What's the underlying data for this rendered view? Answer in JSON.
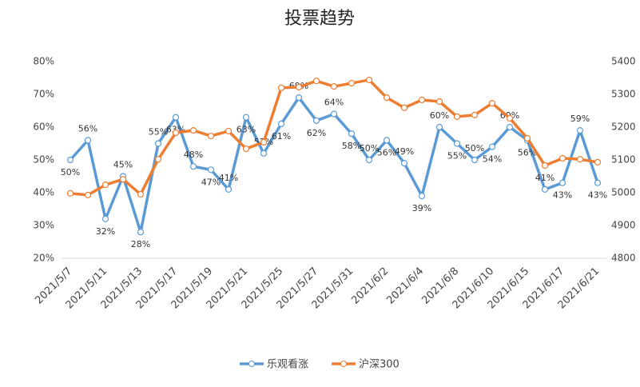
{
  "chart_data": {
    "type": "line",
    "title": "投票趋势",
    "categories": [
      "2021/5/7",
      null,
      "2021/5/11",
      null,
      "2021/5/13",
      null,
      "2021/5/17",
      null,
      "2021/5/19",
      null,
      "2021/5/21",
      null,
      "2021/5/25",
      null,
      "2021/5/27",
      null,
      "2021/5/31",
      null,
      "2021/6/2",
      null,
      "2021/6/4",
      null,
      "2021/6/8",
      null,
      "2021/6/10",
      null,
      "2021/6/15",
      null,
      "2021/6/17",
      null,
      "2021/6/21"
    ],
    "series": [
      {
        "name": "乐观看涨",
        "color": "#5b9bd5",
        "values": [
          50,
          56,
          32,
          45,
          28,
          55,
          63,
          48,
          47,
          41,
          63,
          52,
          61,
          69,
          62,
          64,
          58,
          50,
          56,
          49,
          39,
          60,
          55,
          50,
          54,
          60,
          56,
          41,
          43,
          59,
          43
        ],
        "value_labels": [
          "50%",
          "56%",
          "32%",
          "45%",
          "28%",
          "55%",
          "63%",
          "48%",
          "47%",
          "41%",
          "63%",
          "52%",
          "61%",
          "69%",
          "62%",
          "64%",
          "58%",
          "50%",
          "56%",
          "49%",
          "39%",
          "60%",
          "55%",
          "50%",
          "54%",
          "60%",
          "56%",
          "41%",
          "43%",
          "59%",
          "43%"
        ]
      },
      {
        "name": "沪深300",
        "color": "#ed7d31",
        "axis": "y2",
        "values": [
          4998,
          4993,
          5024,
          5041,
          4995,
          5102,
          5183,
          5190,
          5173,
          5188,
          5134,
          5154,
          5320,
          5322,
          5341,
          5324,
          5334,
          5344,
          5290,
          5259,
          5283,
          5278,
          5232,
          5237,
          5273,
          5227,
          5166,
          5083,
          5105,
          5102,
          5093
        ]
      }
    ],
    "ylim": [
      20,
      80
    ],
    "yticks": [
      {
        "value": 20,
        "label": "20%"
      },
      {
        "value": 30,
        "label": "30%"
      },
      {
        "value": 40,
        "label": "40%"
      },
      {
        "value": 50,
        "label": "50%"
      },
      {
        "value": 60,
        "label": "60%"
      },
      {
        "value": 70,
        "label": "70%"
      },
      {
        "value": 80,
        "label": "80%"
      }
    ],
    "y2lim": [
      4800,
      5400
    ],
    "y2ticks": [
      4800,
      4900,
      5000,
      5100,
      5200,
      5300,
      5400
    ],
    "legend": "bottom"
  }
}
